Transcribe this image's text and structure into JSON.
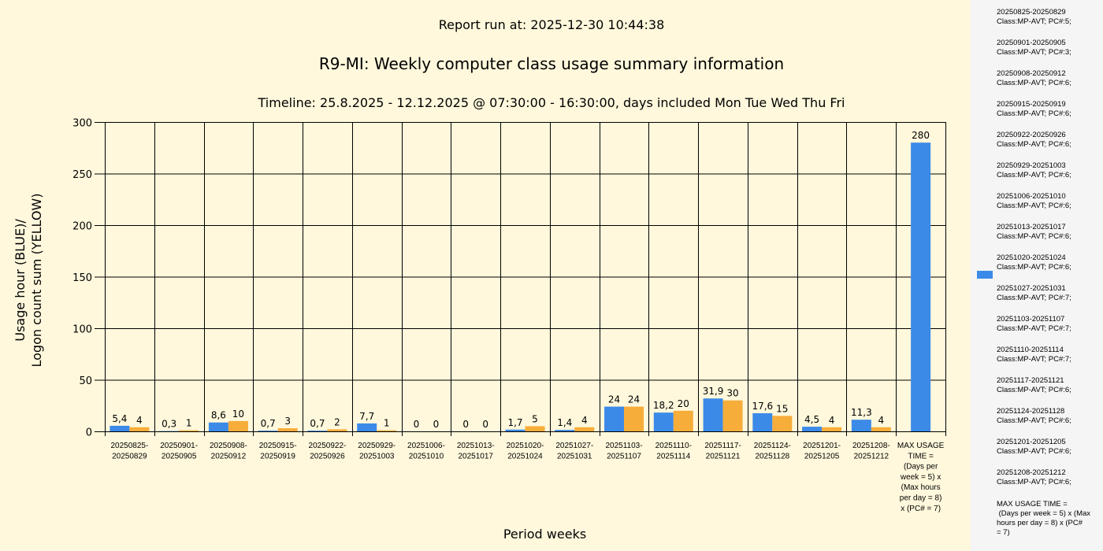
{
  "colors": {
    "background": "#fff8dc",
    "legend_background": "#f5f5f5",
    "blue": "#3c8ae8",
    "yellow": "#f7ad3a"
  },
  "header": {
    "run_at": "Report run at: 2025-12-30 10:44:38",
    "title": "R9-MI: Weekly computer class usage summary information",
    "timeline": "Timeline:  25.8.2025  - 12.12.2025  @  07:30:00 -  16:30:00, days included Mon Tue Wed Thu Fri"
  },
  "legend": {
    "entries": [
      {
        "period": "20250825-20250829",
        "info": "Class:MP-AVT; PC#:5;"
      },
      {
        "period": "20250901-20250905",
        "info": "Class:MP-AVT; PC#:3;"
      },
      {
        "period": "20250908-20250912",
        "info": "Class:MP-AVT; PC#:6;"
      },
      {
        "period": "20250915-20250919",
        "info": "Class:MP-AVT; PC#:6;"
      },
      {
        "period": "20250922-20250926",
        "info": "Class:MP-AVT; PC#:6;"
      },
      {
        "period": "20250929-20251003",
        "info": "Class:MP-AVT; PC#:6;"
      },
      {
        "period": "20251006-20251010",
        "info": "Class:MP-AVT; PC#:6;"
      },
      {
        "period": "20251013-20251017",
        "info": "Class:MP-AVT; PC#:6;"
      },
      {
        "period": "20251020-20251024",
        "info": "Class:MP-AVT; PC#:6;"
      },
      {
        "period": "20251027-20251031",
        "info": "Class:MP-AVT; PC#:7;"
      },
      {
        "period": "20251103-20251107",
        "info": "Class:MP-AVT; PC#:7;"
      },
      {
        "period": "20251110-20251114",
        "info": "Class:MP-AVT; PC#:7;"
      },
      {
        "period": "20251117-20251121",
        "info": "Class:MP-AVT; PC#:6;"
      },
      {
        "period": "20251124-20251128",
        "info": "Class:MP-AVT; PC#:6;"
      },
      {
        "period": "20251201-20251205",
        "info": "Class:MP-AVT; PC#:6;"
      },
      {
        "period": "20251208-20251212",
        "info": "Class:MP-AVT; PC#:6;"
      }
    ],
    "max_lines": [
      "MAX USAGE TIME =",
      " (Days per week = 5) x (Max",
      "hours per day = 8) x (PC#",
      "= 7)"
    ]
  },
  "chart_data": {
    "type": "bar",
    "xlabel": "Period weeks",
    "ylabel_lines": [
      "Usage hour (BLUE)/",
      "Logon count sum (YELLOW)"
    ],
    "ylim": [
      0,
      300
    ],
    "yticks": [
      0,
      50,
      100,
      150,
      200,
      250,
      300
    ],
    "grid": true,
    "legend_position": "right",
    "categories": [
      [
        "20250825-",
        "20250829"
      ],
      [
        "20250901-",
        "20250905"
      ],
      [
        "20250908-",
        "20250912"
      ],
      [
        "20250915-",
        "20250919"
      ],
      [
        "20250922-",
        "20250926"
      ],
      [
        "20250929-",
        "20251003"
      ],
      [
        "20251006-",
        "20251010"
      ],
      [
        "20251013-",
        "20251017"
      ],
      [
        "20251020-",
        "20251024"
      ],
      [
        "20251027-",
        "20251031"
      ],
      [
        "20251103-",
        "20251107"
      ],
      [
        "20251110-",
        "20251114"
      ],
      [
        "20251117-",
        "20251121"
      ],
      [
        "20251124-",
        "20251128"
      ],
      [
        "20251201-",
        "20251205"
      ],
      [
        "20251208-",
        "20251212"
      ],
      [
        "MAX USAGE",
        "TIME =",
        "(Days per",
        "week = 5) x",
        "(Max hours",
        "per day = 8)",
        "x (PC# = 7)"
      ]
    ],
    "series": [
      {
        "color": "#3c8ae8",
        "values": [
          5.4,
          0.3,
          8.6,
          0.7,
          0.7,
          7.7,
          0,
          0,
          1.7,
          1.4,
          24,
          18.2,
          31.9,
          17.6,
          4.5,
          11.3,
          280
        ],
        "labels": [
          "5,4",
          "0,3",
          "8,6",
          "0,7",
          "0,7",
          "7,7",
          "0",
          "0",
          "1,7",
          "1,4",
          "24",
          "18,2",
          "31,9",
          "17,6",
          "4,5",
          "11,3",
          "280"
        ]
      },
      {
        "color": "#f7ad3a",
        "values": [
          4,
          1,
          10,
          3,
          2,
          1,
          0,
          0,
          5,
          4,
          24,
          20,
          30,
          15,
          4,
          4,
          null
        ],
        "labels": [
          "4",
          "1",
          "10",
          "3",
          "2",
          "1",
          "0",
          "0",
          "5",
          "4",
          "24",
          "20",
          "30",
          "15",
          "4",
          "4",
          null
        ]
      }
    ]
  }
}
